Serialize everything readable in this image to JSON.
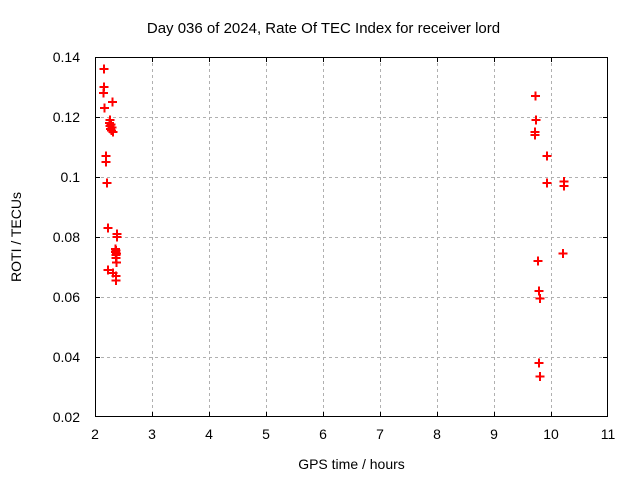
{
  "chart_data": {
    "type": "scatter",
    "title": "Day 036 of 2024, Rate Of TEC Index for receiver lord",
    "xlabel": "GPS time / hours",
    "ylabel": "ROTI / TECUs",
    "xlim": [
      2,
      11
    ],
    "ylim": [
      0.02,
      0.14
    ],
    "xticks": [
      2,
      3,
      4,
      5,
      6,
      7,
      8,
      9,
      10,
      11
    ],
    "xtick_labels": [
      "2",
      "3",
      "4",
      "5",
      "6",
      "7",
      "8",
      "9",
      "10",
      "11"
    ],
    "yticks": [
      0.02,
      0.04,
      0.06,
      0.08,
      0.1,
      0.12,
      0.14
    ],
    "ytick_labels": [
      "0.02",
      "0.04",
      "0.06",
      "0.08",
      "0.1",
      "0.12",
      "0.14"
    ],
    "grid": true,
    "legend": "none",
    "marker": "plus",
    "marker_color": "#ff0000",
    "grid_color": "#b0b0b0",
    "frame_color": "#000000",
    "points": [
      [
        2.16,
        0.136
      ],
      [
        2.16,
        0.13
      ],
      [
        2.15,
        0.128
      ],
      [
        2.31,
        0.125
      ],
      [
        2.17,
        0.123
      ],
      [
        2.26,
        0.119
      ],
      [
        2.25,
        0.118
      ],
      [
        2.28,
        0.1175
      ],
      [
        2.26,
        0.117
      ],
      [
        2.3,
        0.1165
      ],
      [
        2.27,
        0.116
      ],
      [
        2.29,
        0.1155
      ],
      [
        2.32,
        0.115
      ],
      [
        2.19,
        0.107
      ],
      [
        2.19,
        0.105
      ],
      [
        2.21,
        0.098
      ],
      [
        2.23,
        0.083
      ],
      [
        2.39,
        0.081
      ],
      [
        2.39,
        0.08
      ],
      [
        2.36,
        0.076
      ],
      [
        2.37,
        0.0755
      ],
      [
        2.36,
        0.075
      ],
      [
        2.38,
        0.0745
      ],
      [
        2.37,
        0.074
      ],
      [
        2.37,
        0.073
      ],
      [
        2.38,
        0.0715
      ],
      [
        2.23,
        0.069
      ],
      [
        2.32,
        0.068
      ],
      [
        2.37,
        0.067
      ],
      [
        2.37,
        0.0655
      ],
      [
        9.73,
        0.127
      ],
      [
        9.74,
        0.119
      ],
      [
        9.72,
        0.115
      ],
      [
        9.72,
        0.114
      ],
      [
        9.93,
        0.107
      ],
      [
        9.93,
        0.098
      ],
      [
        10.23,
        0.0985
      ],
      [
        10.23,
        0.097
      ],
      [
        10.21,
        0.0745
      ],
      [
        9.77,
        0.072
      ],
      [
        9.79,
        0.062
      ],
      [
        9.81,
        0.0595
      ],
      [
        9.79,
        0.038
      ],
      [
        9.81,
        0.0335
      ]
    ]
  }
}
